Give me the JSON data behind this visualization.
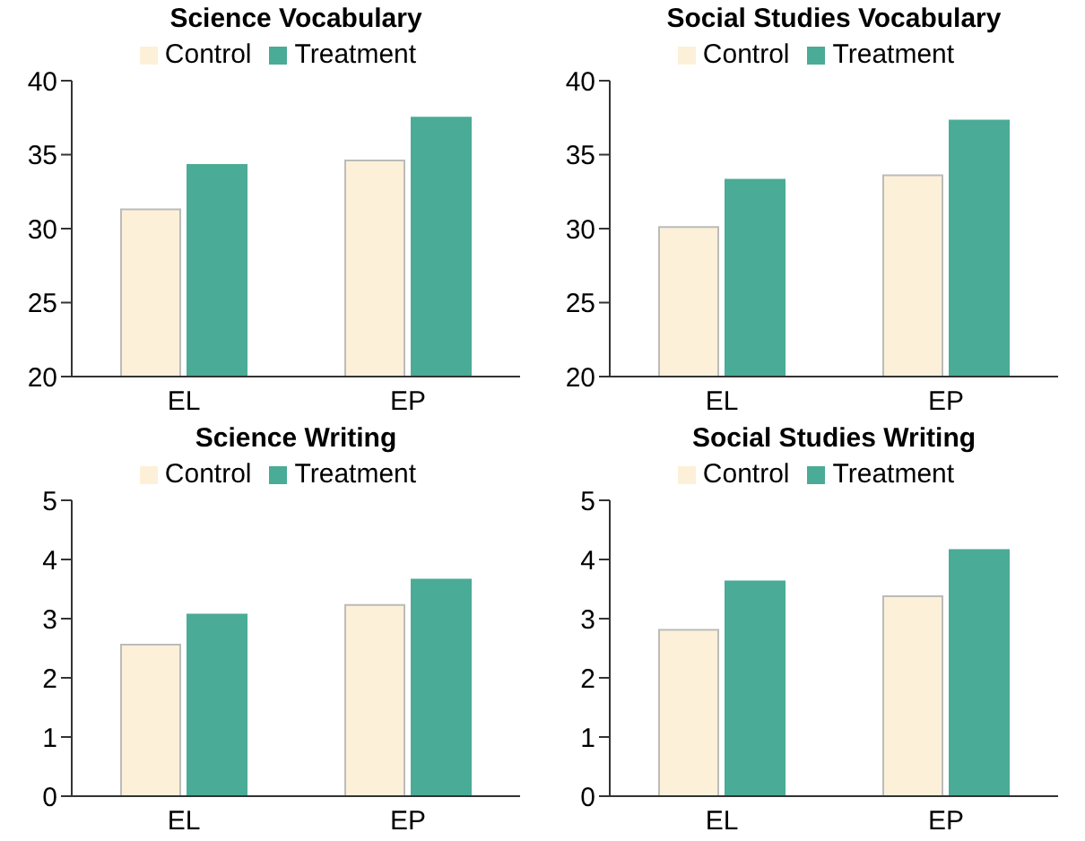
{
  "chart_data": [
    {
      "type": "bar",
      "title": "Science Vocabulary",
      "categories": [
        "EL",
        "EP"
      ],
      "ylim": [
        20,
        40
      ],
      "yticks": [
        20,
        25,
        30,
        35,
        40
      ],
      "legend": "top",
      "grid": false,
      "series": [
        {
          "name": "Control",
          "color": "#fdf0d9",
          "values": [
            31.3,
            34.6
          ]
        },
        {
          "name": "Treatment",
          "color": "#4aab96",
          "values": [
            34.3,
            37.5
          ]
        }
      ]
    },
    {
      "type": "bar",
      "title": "Social Studies Vocabulary",
      "categories": [
        "EL",
        "EP"
      ],
      "ylim": [
        20,
        40
      ],
      "yticks": [
        20,
        25,
        30,
        35,
        40
      ],
      "legend": "top",
      "grid": false,
      "series": [
        {
          "name": "Control",
          "color": "#fdf0d9",
          "values": [
            30.1,
            33.6
          ]
        },
        {
          "name": "Treatment",
          "color": "#4aab96",
          "values": [
            33.3,
            37.3
          ]
        }
      ]
    },
    {
      "type": "bar",
      "title": "Science Writing",
      "categories": [
        "EL",
        "EP"
      ],
      "ylim": [
        0,
        5
      ],
      "yticks": [
        0,
        1,
        2,
        3,
        4,
        5
      ],
      "legend": "top",
      "grid": false,
      "series": [
        {
          "name": "Control",
          "color": "#fdf0d9",
          "values": [
            2.56,
            3.23
          ]
        },
        {
          "name": "Treatment",
          "color": "#4aab96",
          "values": [
            3.07,
            3.66
          ]
        }
      ]
    },
    {
      "type": "bar",
      "title": "Social Studies Writing",
      "categories": [
        "EL",
        "EP"
      ],
      "ylim": [
        0,
        5
      ],
      "yticks": [
        0,
        1,
        2,
        3,
        4,
        5
      ],
      "legend": "top",
      "grid": false,
      "series": [
        {
          "name": "Control",
          "color": "#fdf0d9",
          "values": [
            2.81,
            3.38
          ]
        },
        {
          "name": "Treatment",
          "color": "#4aab96",
          "values": [
            3.63,
            4.16
          ]
        }
      ]
    }
  ]
}
